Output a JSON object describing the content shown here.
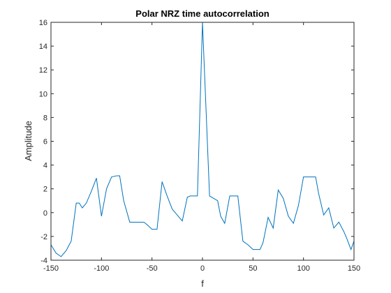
{
  "chart_data": {
    "type": "line",
    "title": "Polar NRZ time autocorrelation",
    "xlabel": "f",
    "ylabel": "Amplitude",
    "xlim": [
      -150,
      150
    ],
    "ylim": [
      -4,
      16
    ],
    "xticks": [
      -150,
      -100,
      -50,
      0,
      50,
      100,
      150
    ],
    "yticks": [
      -4,
      -2,
      0,
      2,
      4,
      6,
      8,
      10,
      12,
      14,
      16
    ],
    "grid": false,
    "line_color": "#0072BD",
    "series": [
      {
        "x": [
          -150,
          -145,
          -140,
          -135,
          -130,
          -125,
          -122,
          -119,
          -115,
          -110,
          -105,
          -100,
          -95,
          -90,
          -85,
          -82,
          -78,
          -72,
          -70,
          -67,
          -62,
          -58,
          -55,
          -50,
          -45,
          -40,
          -35,
          -30,
          -20,
          -15,
          -12,
          -8,
          -5,
          0,
          7,
          15,
          18,
          22,
          27,
          30,
          35,
          40,
          45,
          50,
          57,
          60,
          65,
          70,
          75,
          80,
          85,
          90,
          95,
          100,
          105,
          107,
          112,
          115,
          120,
          125,
          130,
          135,
          140,
          143,
          147,
          150
        ],
        "y": [
          -2.7,
          -3.4,
          -3.7,
          -3.2,
          -2.4,
          0.8,
          0.8,
          0.4,
          0.8,
          1.8,
          2.9,
          -0.3,
          2.0,
          3.0,
          3.1,
          3.1,
          1.0,
          -0.8,
          -0.8,
          -0.8,
          -0.8,
          -0.8,
          -1.0,
          -1.4,
          -1.4,
          2.6,
          1.4,
          0.3,
          -0.7,
          1.3,
          1.4,
          1.4,
          1.4,
          16.0,
          1.4,
          1.0,
          -0.3,
          -0.9,
          1.4,
          1.4,
          1.4,
          -2.4,
          -2.7,
          -3.1,
          -3.1,
          -2.5,
          -0.4,
          -1.3,
          1.9,
          1.2,
          -0.3,
          -0.9,
          0.6,
          3.0,
          3.0,
          3.0,
          3.0,
          1.6,
          -0.2,
          0.4,
          -1.3,
          -0.8,
          -1.6,
          -2.2,
          -3.1,
          -2.4
        ]
      }
    ]
  }
}
